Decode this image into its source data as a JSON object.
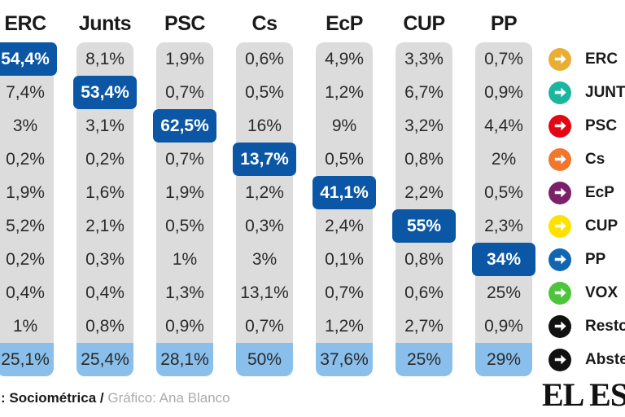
{
  "colors": {
    "highlight_blue": "#0B57A5",
    "abstention_blue": "#89BFEA",
    "cell_gray": "#DCDCDC",
    "text_dark": "#1a1a1a",
    "credit_gray": "#ababab"
  },
  "table": {
    "row_parties": [
      "ERC",
      "JUNTS",
      "PSC",
      "Cs",
      "EcP",
      "CUP",
      "PP",
      "VOX",
      "Resto",
      "Abste"
    ],
    "columns": [
      {
        "header": "ERC",
        "highlight_index": 0,
        "values": [
          "54,4%",
          "7,4%",
          "3%",
          "0,2%",
          "1,9%",
          "5,2%",
          "0,2%",
          "0,4%",
          "1%",
          "25,1%"
        ]
      },
      {
        "header": "Junts",
        "highlight_index": 1,
        "values": [
          "8,1%",
          "53,4%",
          "3,1%",
          "0,2%",
          "1,6%",
          "2,1%",
          "0,3%",
          "0,4%",
          "0,8%",
          "25,4%"
        ]
      },
      {
        "header": "PSC",
        "highlight_index": 2,
        "values": [
          "1,9%",
          "0,7%",
          "62,5%",
          "0,7%",
          "1,9%",
          "0,5%",
          "1%",
          "1,3%",
          "0,9%",
          "28,1%"
        ]
      },
      {
        "header": "Cs",
        "highlight_index": 3,
        "values": [
          "0,6%",
          "0,5%",
          "16%",
          "13,7%",
          "1,2%",
          "0,3%",
          "3%",
          "13,1%",
          "0,7%",
          "50%"
        ]
      },
      {
        "header": "EcP",
        "highlight_index": 4,
        "values": [
          "4,9%",
          "1,2%",
          "9%",
          "0,5%",
          "41,1%",
          "2,4%",
          "0,1%",
          "0,7%",
          "1,2%",
          "37,6%"
        ]
      },
      {
        "header": "CUP",
        "highlight_index": 5,
        "values": [
          "3,3%",
          "6,7%",
          "3,2%",
          "0,8%",
          "2,2%",
          "55%",
          "0,8%",
          "0,6%",
          "2,7%",
          "25%"
        ]
      },
      {
        "header": "PP",
        "highlight_index": 6,
        "values": [
          "0,7%",
          "0,9%",
          "4,4%",
          "2%",
          "0,5%",
          "2,3%",
          "34%",
          "25%",
          "0,9%",
          "29%"
        ]
      }
    ]
  },
  "legend": {
    "items": [
      {
        "label": "ERC",
        "color": "#EAAE35"
      },
      {
        "label": "JUNTS",
        "color": "#1CB6A0"
      },
      {
        "label": "PSC",
        "color": "#E30613"
      },
      {
        "label": "Cs",
        "color": "#F0772B"
      },
      {
        "label": "EcP",
        "color": "#7A2169"
      },
      {
        "label": "CUP",
        "color": "#FFE100"
      },
      {
        "label": "PP",
        "color": "#1166B1"
      },
      {
        "label": "VOX",
        "color": "#4DC53A"
      },
      {
        "label": "Resto",
        "color": "#111111"
      },
      {
        "label": "Abste",
        "color": "#111111"
      }
    ]
  },
  "footer": {
    "source_label": ": Sociométrica",
    "separator": "/",
    "credit": "Gráfico: Ana Blanco",
    "logo": "EL ESPAÑOL"
  },
  "chart_data": {
    "type": "table",
    "title": "",
    "columns": [
      "ERC",
      "Junts",
      "PSC",
      "Cs",
      "EcP",
      "CUP",
      "PP"
    ],
    "rows": [
      "ERC",
      "JUNTS",
      "PSC",
      "Cs",
      "EcP",
      "CUP",
      "PP",
      "VOX",
      "Resto",
      "Abste"
    ],
    "values_pct_by_column": {
      "ERC": [
        54.4,
        7.4,
        3,
        0.2,
        1.9,
        5.2,
        0.2,
        0.4,
        1,
        25.1
      ],
      "Junts": [
        8.1,
        53.4,
        3.1,
        0.2,
        1.6,
        2.1,
        0.3,
        0.4,
        0.8,
        25.4
      ],
      "PSC": [
        1.9,
        0.7,
        62.5,
        0.7,
        1.9,
        0.5,
        1,
        1.3,
        0.9,
        28.1
      ],
      "Cs": [
        0.6,
        0.5,
        16,
        13.7,
        1.2,
        0.3,
        3,
        13.1,
        0.7,
        50
      ],
      "EcP": [
        4.9,
        1.2,
        9,
        0.5,
        41.1,
        2.4,
        0.1,
        0.7,
        1.2,
        37.6
      ],
      "CUP": [
        3.3,
        6.7,
        3.2,
        0.8,
        2.2,
        55,
        0.8,
        0.6,
        2.7,
        25
      ],
      "PP": [
        0.7,
        0.9,
        4.4,
        2,
        0.5,
        2.3,
        34,
        25,
        0.9,
        29
      ]
    },
    "highlighted_diagonal_pct": [
      54.4,
      53.4,
      62.5,
      13.7,
      41.1,
      55,
      34
    ],
    "bottom_row_is_abstention": true,
    "source": ": Sociométrica / Gráfico: Ana Blanco"
  }
}
